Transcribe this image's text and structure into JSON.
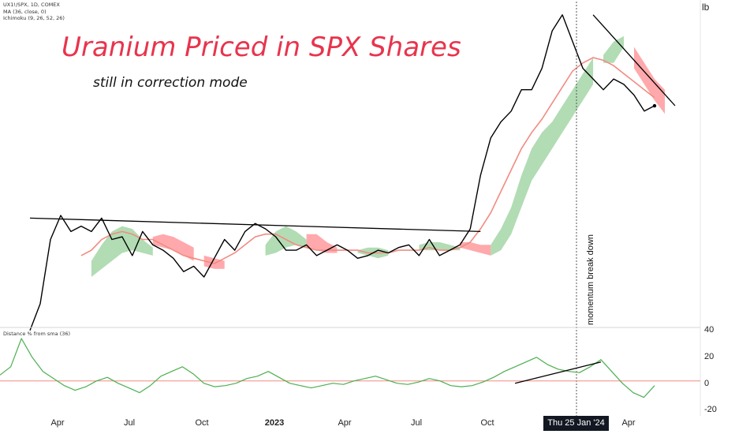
{
  "legend": {
    "symbol": "UX1!/SPX, 1D, COMEX",
    "ma": "MA (36, close, 0)",
    "ichimoku": "Ichimoku (9, 26, 52, 26)"
  },
  "title": "Uranium Priced in SPX Shares",
  "subtitle": "still in correction mode",
  "price_unit": "lb",
  "indicator_label": "Distance % from sma (36)",
  "annotation": "momentum break down",
  "crosshair_date": "Thu 25 Jan '24",
  "colors": {
    "price": "#000000",
    "sma": "#f28b82",
    "cloud_bull": "#a5d6a7",
    "cloud_bear": "#ff9a9e",
    "title": "#e8344d",
    "indicator": "#4caf50",
    "zero_line": "#f28b82"
  },
  "chart_data": [
    {
      "type": "line",
      "x_labels": [
        "Apr",
        "Jul",
        "Oct",
        "2023",
        "Apr",
        "Jul",
        "Oct",
        "Apr"
      ],
      "x_labels_bold": [
        "2023"
      ],
      "series": [
        {
          "values": [
            0.0138,
            0.0148,
            0.0172,
            0.0181,
            0.0175,
            0.0177,
            0.0175,
            0.018,
            0.0172,
            0.0173,
            0.0166,
            0.0175,
            0.017,
            0.0168,
            0.0165,
            0.016,
            0.0162,
            0.0158,
            0.0165,
            0.0172,
            0.0168,
            0.0175,
            0.0178,
            0.0176,
            0.0173,
            0.0168,
            0.0168,
            0.017,
            0.0166,
            0.0168,
            0.017,
            0.0168,
            0.0165,
            0.0166,
            0.0168,
            0.0167,
            0.0169,
            0.017,
            0.0166,
            0.0172,
            0.0166,
            0.0168,
            0.017,
            0.0176,
            0.0196,
            0.021,
            0.0216,
            0.022,
            0.0228,
            0.0228,
            0.0236,
            0.025,
            0.0256,
            0.0246,
            0.0236,
            0.0232,
            0.0228,
            0.0232,
            0.023,
            0.0226,
            0.022,
            0.0222
          ]
        },
        {
          "values": [
            null,
            null,
            null,
            null,
            null,
            0.0166,
            0.0168,
            0.0172,
            0.0174,
            0.0175,
            0.0174,
            0.0172,
            0.0172,
            0.017,
            0.0168,
            0.0166,
            0.0165,
            0.0164,
            0.0163,
            0.0165,
            0.0167,
            0.017,
            0.0173,
            0.0174,
            0.0174,
            0.0172,
            0.017,
            0.0169,
            0.0168,
            0.0168,
            0.0168,
            0.0168,
            0.0168,
            0.0167,
            0.0167,
            0.0167,
            0.0168,
            0.0168,
            0.0168,
            0.0169,
            0.0168,
            0.0168,
            0.0169,
            0.0171,
            0.0176,
            0.0182,
            0.019,
            0.0198,
            0.0206,
            0.0212,
            0.0217,
            0.0223,
            0.0229,
            0.0235,
            0.0238,
            0.024,
            0.0239,
            0.0237,
            0.0234,
            0.0231,
            0.0228,
            0.0225
          ]
        }
      ],
      "cloud": [
        {
          "start": 6,
          "top": [
            0.0164,
            0.017,
            0.0175,
            0.0177,
            0.0176,
            0.0172,
            0.0169
          ],
          "bottom": [
            0.0158,
            0.0161,
            0.0164,
            0.0167,
            0.0168,
            0.0167,
            0.0166
          ],
          "bullish": true
        },
        {
          "start": 12,
          "top": [
            0.0173,
            0.0174,
            0.0173,
            0.0171,
            0.0169
          ],
          "bottom": [
            0.017,
            0.0169,
            0.0168,
            0.0166,
            0.0164
          ],
          "bullish": false
        },
        {
          "start": 17,
          "top": [
            0.0166,
            0.0165,
            0.0164
          ],
          "bottom": [
            0.0162,
            0.0161,
            0.0161
          ],
          "bullish": false
        },
        {
          "start": 23,
          "top": [
            0.017,
            0.0175,
            0.0177,
            0.0175,
            0.0172
          ],
          "bottom": [
            0.0166,
            0.0167,
            0.0169,
            0.017,
            0.0169
          ],
          "bullish": true
        },
        {
          "start": 27,
          "top": [
            0.0174,
            0.0174,
            0.0171,
            0.0169
          ],
          "bottom": [
            0.0169,
            0.0168,
            0.0167,
            0.0167
          ],
          "bullish": false
        },
        {
          "start": 32,
          "top": [
            0.0168,
            0.0169,
            0.0169,
            0.0168
          ],
          "bottom": [
            0.0167,
            0.0166,
            0.0165,
            0.0166
          ],
          "bullish": true
        },
        {
          "start": 38,
          "top": [
            0.017,
            0.0171,
            0.0171,
            0.017,
            0.0169
          ],
          "bottom": [
            0.0168,
            0.0168,
            0.0168,
            0.0168,
            0.0168
          ],
          "bullish": true
        },
        {
          "start": 42,
          "top": [
            0.0171,
            0.0171,
            0.017,
            0.017
          ],
          "bottom": [
            0.0169,
            0.0168,
            0.0167,
            0.0166
          ],
          "bullish": false
        },
        {
          "start": 45,
          "top": [
            0.017,
            0.0176,
            0.0184,
            0.0196,
            0.0206,
            0.0212,
            0.0216,
            0.0222,
            0.0228,
            0.0234,
            0.024
          ],
          "bottom": [
            0.0166,
            0.0168,
            0.0174,
            0.0184,
            0.0194,
            0.02,
            0.0206,
            0.0212,
            0.0218,
            0.0224,
            0.023
          ],
          "bullish": true
        },
        {
          "start": 56,
          "top": [
            0.0241,
            0.0246,
            0.0248
          ],
          "bottom": [
            0.0238,
            0.0238,
            0.0244
          ],
          "bullish": true
        },
        {
          "start": 59,
          "top": [
            0.0244,
            0.0238,
            0.0232,
            0.0228
          ],
          "bottom": [
            0.0236,
            0.023,
            0.0224,
            0.0219
          ],
          "bullish": false
        }
      ],
      "trendlines": [
        {
          "x": [
            0,
            44
          ],
          "y": [
            0.018,
            0.0175
          ]
        },
        {
          "x": [
            55,
            63
          ],
          "y": [
            0.0256,
            0.0222
          ]
        }
      ],
      "marker_index": 55
    },
    {
      "type": "line",
      "ylabel": "Distance % from sma (36)",
      "y_ticks": [
        40.0,
        20.0,
        0.0,
        -20.0
      ],
      "ylim": [
        -25,
        42
      ],
      "zero_line": 0,
      "values": [
        5,
        12,
        36,
        20,
        8,
        2,
        -4,
        -8,
        -5,
        0,
        3,
        -2,
        -6,
        -10,
        -4,
        4,
        8,
        12,
        6,
        -2,
        -5,
        -4,
        -2,
        2,
        4,
        8,
        3,
        -2,
        -4,
        -6,
        -4,
        -2,
        -3,
        0,
        2,
        4,
        1,
        -2,
        -3,
        -1,
        2,
        0,
        -4,
        -5,
        -4,
        -1,
        3,
        8,
        12,
        16,
        20,
        14,
        10,
        8,
        7,
        12,
        18,
        8,
        -2,
        -10,
        -14,
        -4
      ],
      "trendline": {
        "x": [
          48,
          56
        ],
        "y": [
          -2,
          16
        ]
      }
    }
  ]
}
